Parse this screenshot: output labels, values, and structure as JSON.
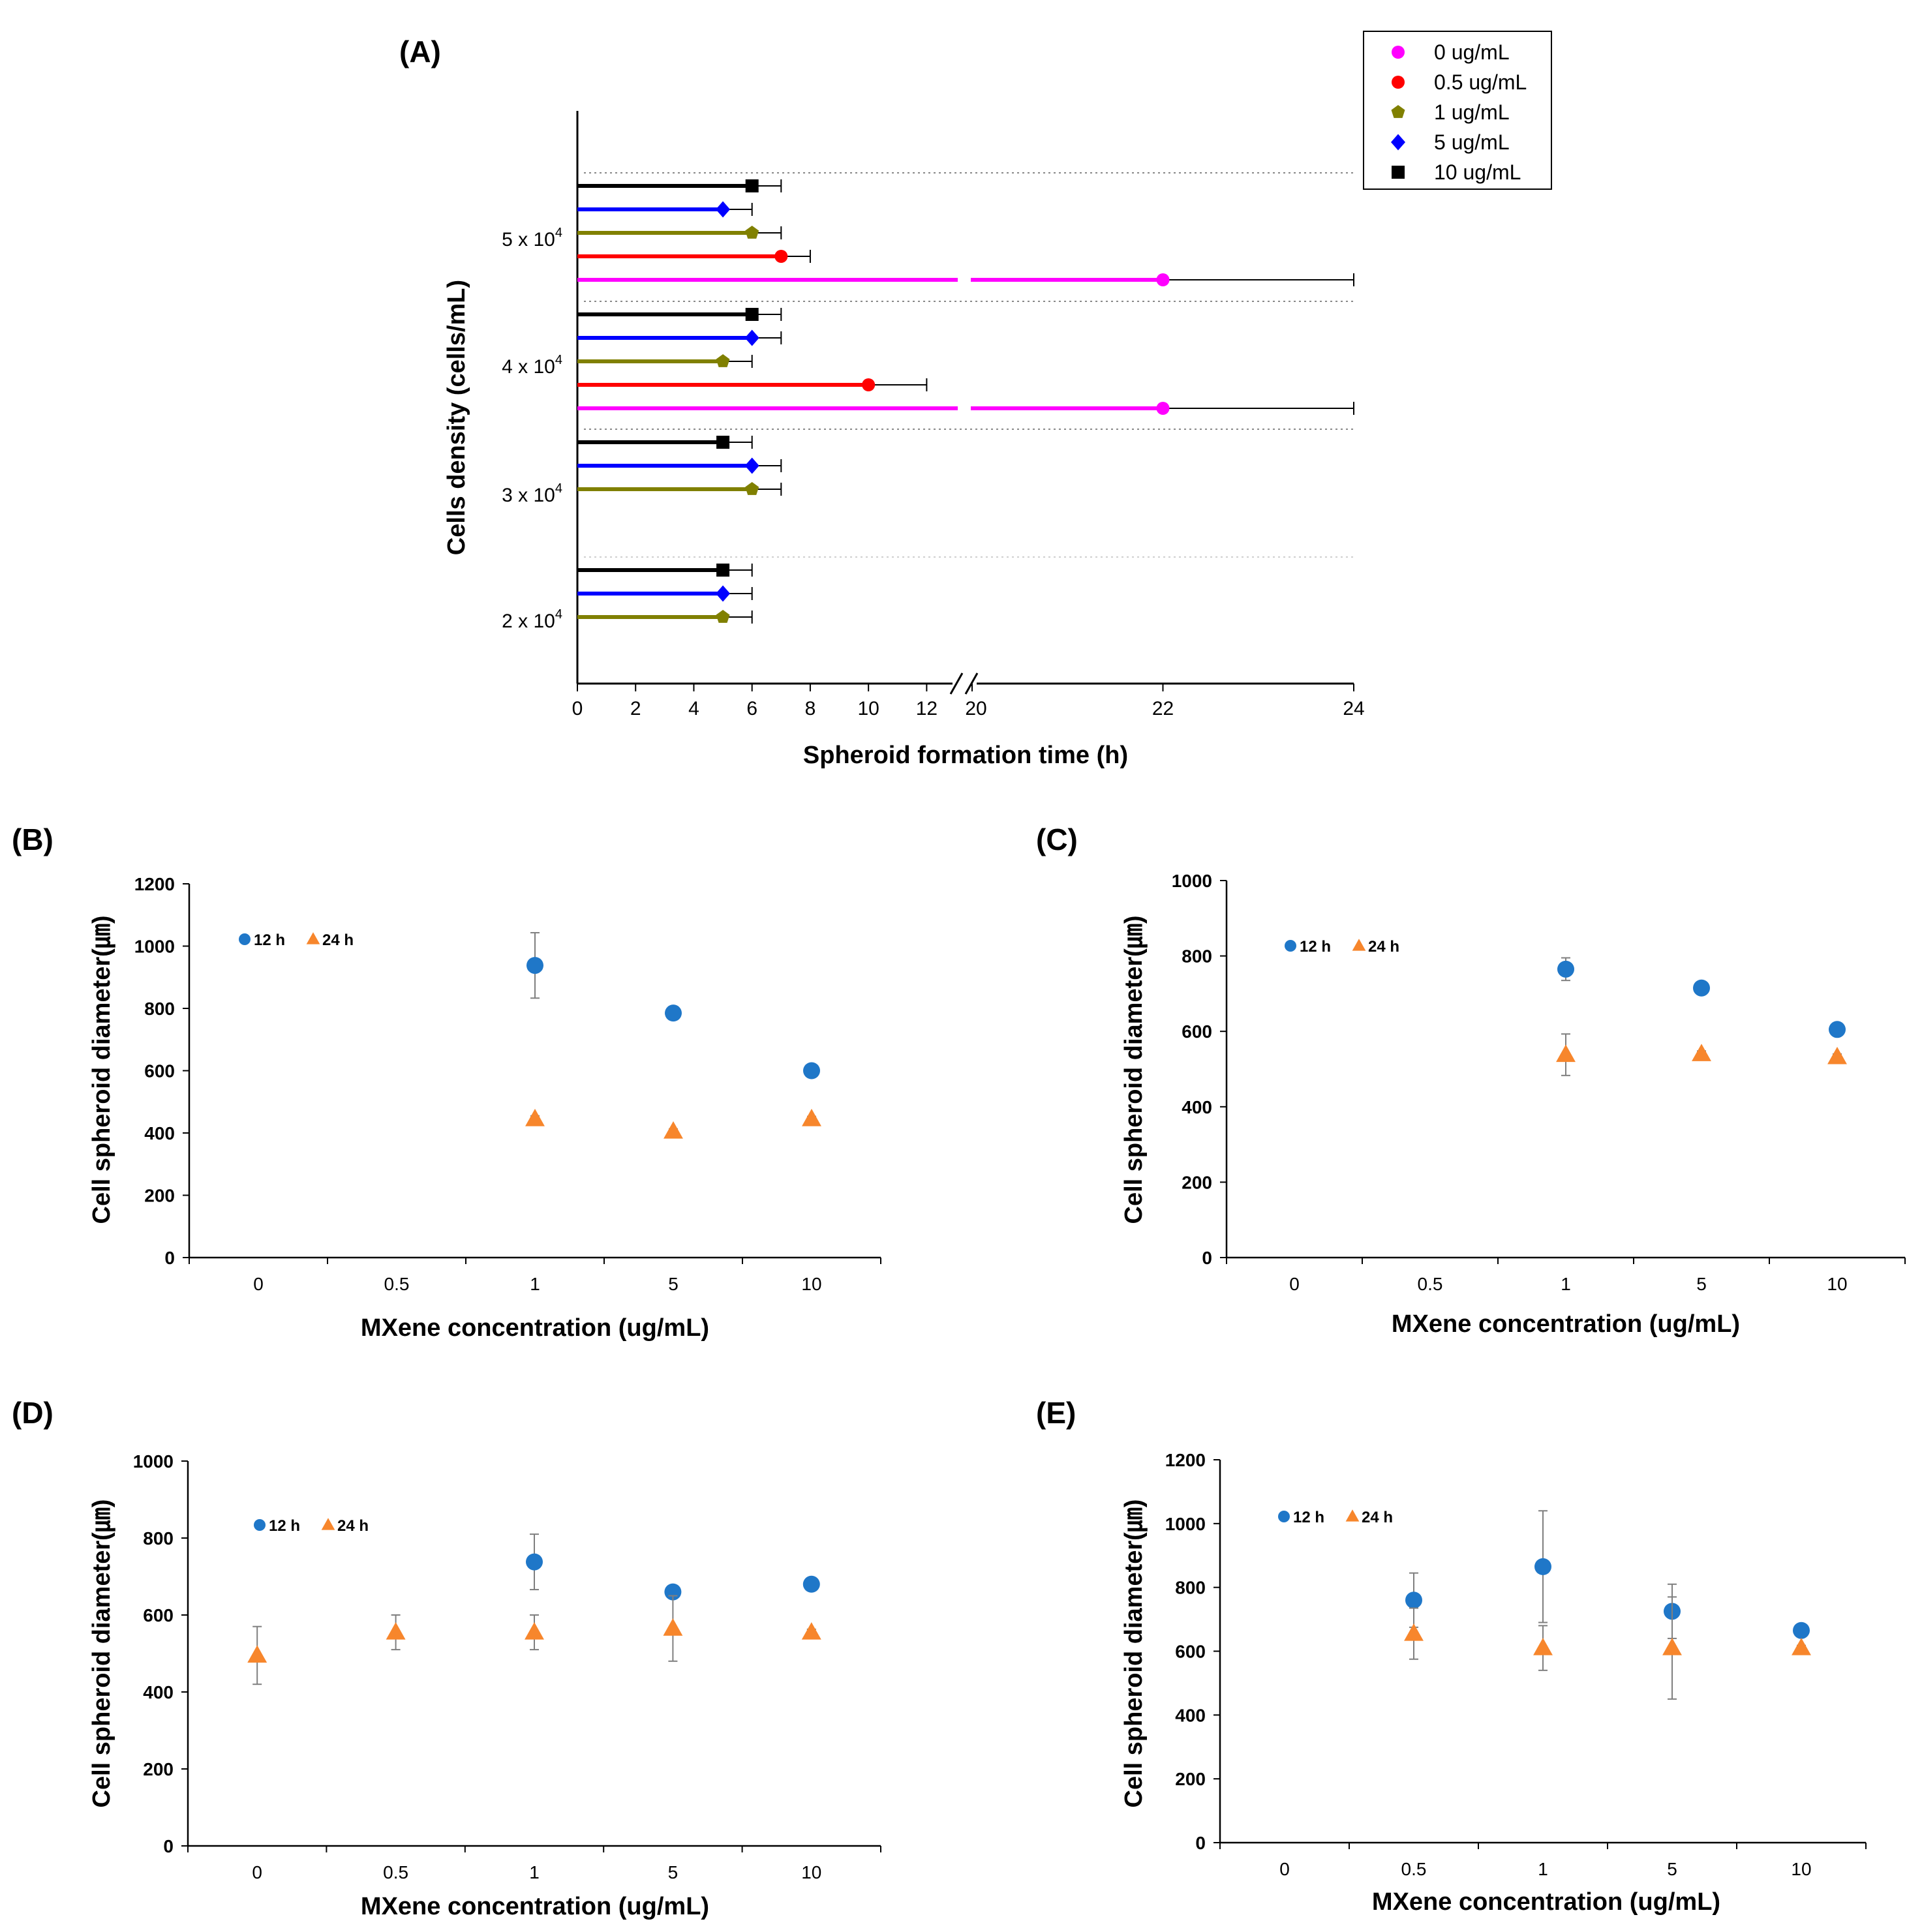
{
  "chart_data": [
    {
      "id": "A",
      "type": "bar",
      "orientation": "horizontal",
      "panel_label": "(A)",
      "title": "",
      "xlabel": "Spheroid formation time (h)",
      "ylabel": "Cells density (cells/mL)",
      "axis_break": [
        13,
        20
      ],
      "xlim": [
        0,
        24
      ],
      "x_ticks": [
        "0",
        "2",
        "4",
        "6",
        "8",
        "10",
        "12",
        "20",
        "22",
        "24"
      ],
      "x_tick_values": [
        0,
        2,
        4,
        6,
        8,
        10,
        12,
        20,
        22,
        24
      ],
      "categories": [
        {
          "base": "5 x 10",
          "exp": "4"
        },
        {
          "base": "4 x 10",
          "exp": "4"
        },
        {
          "base": "3 x 10",
          "exp": "4"
        },
        {
          "base": "2 x 10",
          "exp": "4"
        }
      ],
      "legend_position": "top-right",
      "series": [
        {
          "name": "0 ug/mL",
          "color": "#ff00ff",
          "marker": "circle",
          "values": [
            22,
            22,
            null,
            null
          ],
          "errors": [
            2,
            2,
            null,
            null
          ]
        },
        {
          "name": "0.5 ug/mL",
          "color": "#ff0000",
          "marker": "circle",
          "values": [
            7,
            10,
            null,
            null
          ],
          "errors": [
            1,
            2,
            null,
            null
          ]
        },
        {
          "name": "1 ug/mL",
          "color": "#808000",
          "marker": "pentagon",
          "values": [
            6,
            5,
            6,
            5
          ],
          "errors": [
            1,
            1,
            1,
            1
          ]
        },
        {
          "name": "5 ug/mL",
          "color": "#0000ff",
          "marker": "diamond",
          "values": [
            5,
            6,
            6,
            5
          ],
          "errors": [
            1,
            1,
            1,
            1
          ]
        },
        {
          "name": "10 ug/mL",
          "color": "#000000",
          "marker": "square",
          "values": [
            6,
            6,
            5,
            5
          ],
          "errors": [
            1,
            1,
            1,
            1
          ]
        }
      ]
    },
    {
      "id": "B",
      "type": "scatter",
      "panel_label": "(B)",
      "xlabel": "MXene concentration (ug/mL)",
      "ylabel": "Cell spheroid diameter(㎛)",
      "categories": [
        "0",
        "0.5",
        "1",
        "5",
        "10"
      ],
      "ylim": [
        0,
        1200
      ],
      "y_ticks": [
        "0",
        "200",
        "400",
        "600",
        "800",
        "1000",
        "1200"
      ],
      "legend_position": "top-left",
      "series": [
        {
          "name": "12 h",
          "color": "#1f77c8",
          "marker": "circle",
          "values": [
            null,
            null,
            938,
            785,
            600
          ],
          "errors": [
            null,
            null,
            105,
            10,
            10
          ]
        },
        {
          "name": "24 h",
          "color": "#f7862c",
          "marker": "triangle",
          "values": [
            null,
            null,
            445,
            405,
            445
          ],
          "errors": [
            null,
            null,
            10,
            8,
            8
          ]
        }
      ]
    },
    {
      "id": "C",
      "type": "scatter",
      "panel_label": "(C)",
      "xlabel": "MXene concentration (ug/mL)",
      "ylabel": "Cell spheroid diameter(㎛)",
      "categories": [
        "0",
        "0.5",
        "1",
        "5",
        "10"
      ],
      "ylim": [
        0,
        1000
      ],
      "y_ticks": [
        "0",
        "200",
        "400",
        "600",
        "800",
        "1000"
      ],
      "legend_position": "top-left",
      "series": [
        {
          "name": "12 h",
          "color": "#1f77c8",
          "marker": "circle",
          "values": [
            null,
            null,
            765,
            715,
            605
          ],
          "errors": [
            null,
            null,
            30,
            8,
            8
          ]
        },
        {
          "name": "24 h",
          "color": "#f7862c",
          "marker": "triangle",
          "values": [
            null,
            null,
            538,
            540,
            532
          ],
          "errors": [
            null,
            null,
            55,
            8,
            8
          ]
        }
      ]
    },
    {
      "id": "D",
      "type": "scatter",
      "panel_label": "(D)",
      "xlabel": "MXene concentration (ug/mL)",
      "ylabel": "Cell spheroid diameter(㎛)",
      "categories": [
        "0",
        "0.5",
        "1",
        "5",
        "10"
      ],
      "ylim": [
        0,
        1000
      ],
      "y_ticks": [
        "0",
        "200",
        "400",
        "600",
        "800",
        "1000"
      ],
      "legend_position": "top-left",
      "series": [
        {
          "name": "12 h",
          "color": "#1f77c8",
          "marker": "circle",
          "values": [
            null,
            null,
            738,
            660,
            680
          ],
          "errors": [
            null,
            null,
            72,
            10,
            8
          ]
        },
        {
          "name": "24 h",
          "color": "#f7862c",
          "marker": "triangle",
          "values": [
            495,
            555,
            555,
            565,
            555
          ],
          "errors": [
            75,
            45,
            45,
            85,
            8
          ]
        }
      ]
    },
    {
      "id": "E",
      "type": "scatter",
      "panel_label": "(E)",
      "xlabel": "MXene concentration (ug/mL)",
      "ylabel": "Cell spheroid diameter(㎛)",
      "categories": [
        "0",
        "0.5",
        "1",
        "5",
        "10"
      ],
      "ylim": [
        0,
        1200
      ],
      "y_ticks": [
        "0",
        "200",
        "400",
        "600",
        "800",
        "1000",
        "1200"
      ],
      "legend_position": "top-left",
      "series": [
        {
          "name": "12 h",
          "color": "#1f77c8",
          "marker": "circle",
          "values": [
            null,
            760,
            865,
            725,
            665
          ],
          "errors": [
            null,
            85,
            175,
            85,
            8
          ]
        },
        {
          "name": "24 h",
          "color": "#f7862c",
          "marker": "triangle",
          "values": [
            null,
            655,
            610,
            610,
            610
          ],
          "errors": [
            null,
            80,
            70,
            160,
            8
          ]
        }
      ]
    }
  ]
}
